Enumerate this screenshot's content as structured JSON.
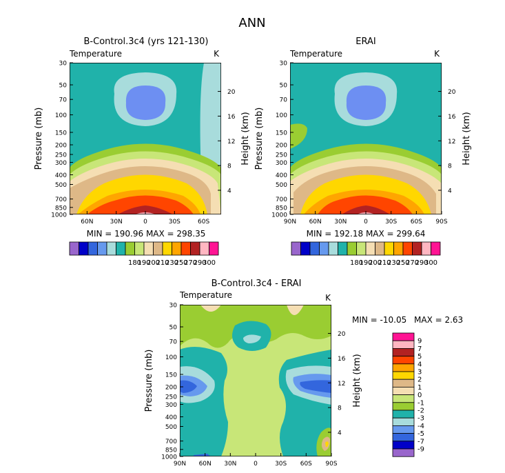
{
  "page_title": "ANN",
  "chart_data": [
    {
      "id": "model",
      "type": "contour",
      "title": "B-Control.3c4 (yrs 121-130)",
      "variable": "Temperature",
      "units": "K",
      "ylabel_left": "Pressure (mb)",
      "ylabel_right": "Height (km)",
      "pressure_ticks": [
        "30",
        "50",
        "70",
        "100",
        "150",
        "200",
        "250",
        "300",
        "400",
        "500",
        "700",
        "850",
        "1000"
      ],
      "height_ticks": [
        "20",
        "16",
        "12",
        "8",
        "4"
      ],
      "lat_ticks": [
        "60N",
        "30N",
        "0",
        "30S",
        "60S"
      ],
      "lat_range": [
        78,
        -78
      ],
      "stats": "MIN = 190.96   MAX = 298.35",
      "min": 190.96,
      "max": 298.35
    },
    {
      "id": "obs",
      "type": "contour",
      "title": "ERAI",
      "variable": "Temperature",
      "units": "K",
      "ylabel_left": "Pressure (mb)",
      "ylabel_right": "Height (km)",
      "pressure_ticks": [
        "30",
        "50",
        "70",
        "100",
        "150",
        "200",
        "250",
        "300",
        "400",
        "500",
        "700",
        "850",
        "1000"
      ],
      "height_ticks": [
        "20",
        "16",
        "12",
        "8",
        "4"
      ],
      "lat_ticks": [
        "90N",
        "60N",
        "30N",
        "0",
        "30S",
        "60S",
        "90S"
      ],
      "lat_range": [
        90,
        -90
      ],
      "stats": "MIN = 192.18   MAX = 299.64",
      "min": 192.18,
      "max": 299.64
    },
    {
      "id": "diff",
      "type": "contour",
      "title": "B-Control.3c4 - ERAI",
      "variable": "Temperature",
      "units": "K",
      "ylabel_left": "Pressure (mb)",
      "ylabel_right": "Height (km)",
      "pressure_ticks": [
        "30",
        "50",
        "70",
        "100",
        "150",
        "200",
        "250",
        "300",
        "400",
        "500",
        "700",
        "850",
        "1000"
      ],
      "height_ticks": [
        "20",
        "16",
        "12",
        "8",
        "4"
      ],
      "lat_ticks": [
        "90N",
        "60N",
        "30N",
        "0",
        "30S",
        "60S",
        "90S"
      ],
      "lat_range": [
        90,
        -90
      ],
      "stats_min": "MIN = -10.05",
      "stats_max": "MAX =    2.63",
      "min": -10.05,
      "max": 2.63
    }
  ],
  "colorbars": {
    "temperature": {
      "labels": [
        "180",
        "190",
        "200",
        "210",
        "230",
        "250",
        "270",
        "290",
        "300"
      ],
      "colors": [
        "#9966cc",
        "#0000c8",
        "#3366dd",
        "#6699ee",
        "#a8dcdc",
        "#20b2aa",
        "#9acd32",
        "#c8e678",
        "#f5deb3",
        "#deb887",
        "#ffd700",
        "#ffa500",
        "#ff4500",
        "#b22222",
        "#ffb6c1",
        "#ff1493"
      ]
    },
    "difference": {
      "labels": [
        "9",
        "7",
        "5",
        "4",
        "3",
        "2",
        "1",
        "0",
        "-1",
        "-2",
        "-3",
        "-4",
        "-5",
        "-7",
        "-9"
      ],
      "colors": [
        "#ff1493",
        "#ffb6c1",
        "#b22222",
        "#ff4500",
        "#ffa500",
        "#ffd700",
        "#deb887",
        "#f5deb3",
        "#c8e678",
        "#9acd32",
        "#20b2aa",
        "#a8dcdc",
        "#6699ee",
        "#3366dd",
        "#0000c8",
        "#9966cc"
      ]
    }
  },
  "colors": {
    "teal": "#20b2aa",
    "light_cyan": "#a8dcdc",
    "cornflower": "#6d8ff2",
    "green": "#9acd32",
    "light_green": "#c8e678",
    "wheat": "#f5deb3",
    "tan": "#deb887",
    "gold": "#ffd700",
    "orange": "#ffa500",
    "red_orange": "#ff4500",
    "firebrick": "#b22222",
    "royal_blue": "#3366dd"
  }
}
